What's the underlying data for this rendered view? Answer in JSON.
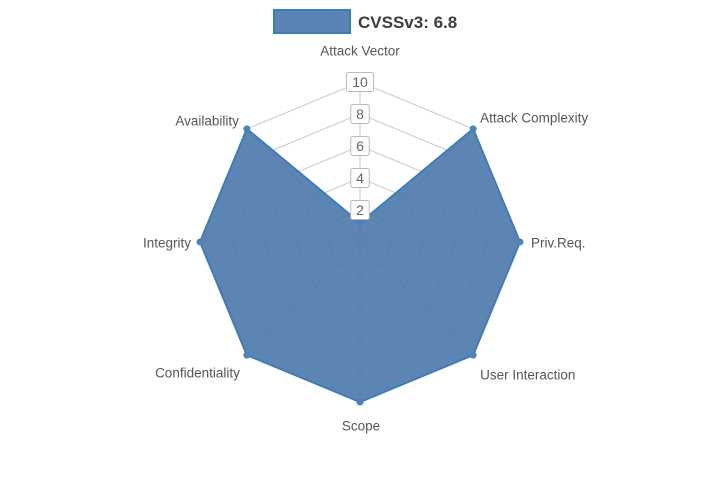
{
  "legend": {
    "label": "CVSSv3: 6.8"
  },
  "chart_data": {
    "type": "radar",
    "title": "",
    "axes": [
      "Attack Vector",
      "Attack Complexity",
      "Priv.Req.",
      "User Interaction",
      "Scope",
      "Confidentiality",
      "Integrity",
      "Availability"
    ],
    "series": [
      {
        "name": "CVSSv3: 6.8",
        "values": [
          1.2,
          10,
          10,
          10,
          10,
          10,
          10,
          10
        ]
      }
    ],
    "radial_ticks": [
      2,
      4,
      6,
      8,
      10
    ],
    "range": [
      0,
      10
    ],
    "grid": true,
    "legend_position": "top",
    "colors": {
      "fill": "#4a78ab",
      "stroke": "#3f7cb6",
      "marker": "#4d82b8",
      "grid": "#c9c9c9",
      "axis_label": "#555555",
      "tick_label": "#666666",
      "tick_backdrop": "#ffffff",
      "tick_border": "#bbbbbb",
      "legend_text": "#3c3c3c"
    }
  }
}
